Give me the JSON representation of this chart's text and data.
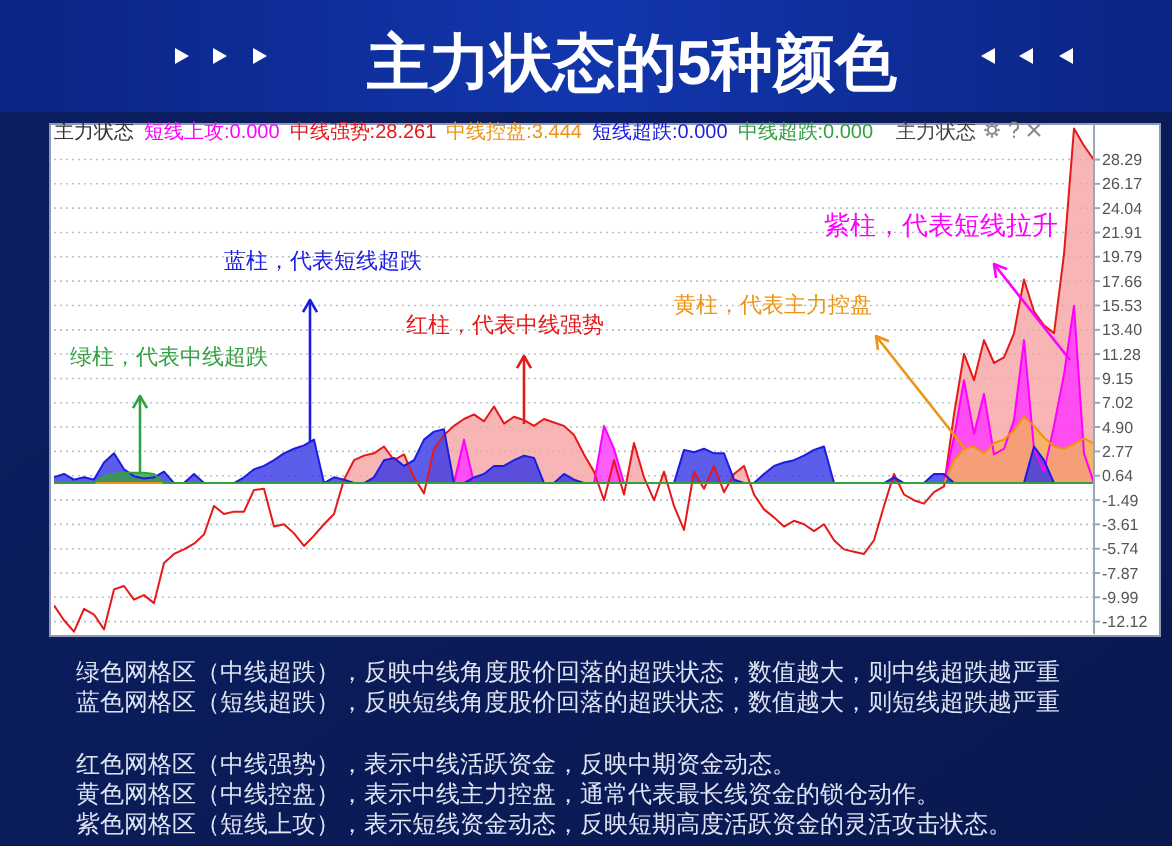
{
  "chart_data": {
    "type": "area",
    "title": "主力状态的5种颜色",
    "legend_title": "主力状态",
    "legend": "top left",
    "grid": "y",
    "ylim": [
      -13.2,
      31.4
    ],
    "yticks": [
      28.29,
      26.17,
      24.04,
      21.91,
      19.79,
      17.66,
      15.53,
      {
        "value": 13.4,
        "label": "13.40"
      },
      11.28,
      9.15,
      7.02,
      {
        "value": 4.9,
        "label": "4.90"
      },
      2.77,
      0.64,
      -1.49,
      -3.61,
      -5.74,
      -7.87,
      -9.99,
      -12.12
    ],
    "annotations": [
      "绿柱，代表中线超跌",
      "蓝柱，代表短线超跌",
      "红柱，代表中线强势",
      "黄柱，代表主力控盘",
      "紫柱，代表短线拉升",
      "主力状态",
      "绿色网格区（中线超跌），反映中线角度股价回落的超跌状态，数值越大，则中线超跌越严重",
      "蓝色网格区（短线超跌），反映短线角度股价回落的超跌状态，数值越大，则短线超跌越严重",
      "红色网格区（中线强势），表示中线活跃资金，反映中期资金动态。",
      "黄色网格区（中线控盘），表示中线主力控盘，通常代表最长线资金的锁仓动作。",
      "紫色网格区（短线上攻），表示短线资金动态，反映短期高度活跃资金的灵活攻击状态。"
    ],
    "categories": [
      null,
      null,
      null,
      null,
      null,
      null,
      null,
      null,
      null,
      null,
      null,
      null,
      null,
      null,
      null,
      null,
      null,
      null,
      null,
      null,
      null,
      null,
      null,
      null,
      null,
      null,
      null,
      null,
      null,
      null,
      null,
      null,
      null,
      null,
      null,
      null,
      null,
      null,
      null,
      null,
      null,
      null,
      null,
      null,
      null,
      null,
      null,
      null,
      null,
      null,
      null,
      null,
      null,
      null,
      null,
      null,
      null,
      null,
      null,
      null,
      null,
      null,
      null,
      null,
      null,
      null,
      null,
      null,
      null,
      null,
      null,
      null,
      null,
      null,
      null,
      null,
      null,
      null,
      null,
      null,
      null,
      null,
      null,
      null,
      null,
      null,
      null,
      null,
      null,
      null,
      null,
      null,
      null,
      null,
      null,
      null,
      null,
      null,
      null,
      null,
      null,
      null,
      null,
      null,
      null
    ],
    "series": [
      {
        "name": "短线上攻:0.000",
        "color": "#ff33ff",
        "values": [
          0,
          0,
          0,
          0,
          0,
          0,
          0,
          0,
          0,
          0,
          0,
          0,
          0,
          0,
          0,
          0,
          0,
          0,
          0,
          0,
          0,
          0,
          0,
          0,
          0,
          0,
          0,
          0,
          0,
          0,
          0,
          0,
          0,
          0,
          0,
          0,
          0,
          0,
          0,
          0,
          0,
          3.8,
          0,
          0,
          0,
          0,
          0,
          0,
          0,
          0,
          0,
          0,
          0,
          0,
          0,
          5.0,
          3.0,
          0,
          0,
          0,
          0,
          0,
          0,
          0,
          0,
          0,
          0,
          0,
          0,
          0,
          0,
          0,
          0,
          0,
          0,
          0,
          0,
          0,
          0,
          0,
          0,
          0,
          0,
          0,
          0,
          0,
          0,
          0,
          0,
          0,
          4.0,
          9.0,
          4.3,
          7.8,
          2.5,
          3.0,
          5.5,
          12.5,
          3.0,
          1.0,
          5.0,
          9.5,
          15.5,
          2.6,
          0
        ]
      },
      {
        "name": "中线强势:28.261",
        "color": "#f5a3a3",
        "values": [
          -10.7,
          -12.0,
          -13.0,
          -11.0,
          -11.5,
          -12.8,
          -9.3,
          -9.0,
          -10.2,
          -9.8,
          -10.5,
          -7.0,
          -6.2,
          -5.8,
          -5.3,
          -4.5,
          -2.0,
          -2.7,
          -2.5,
          -2.5,
          -0.6,
          -0.5,
          -3.8,
          -3.6,
          -4.4,
          -5.5,
          -4.6,
          -3.6,
          -2.7,
          0.3,
          2.0,
          2.4,
          2.6,
          3.2,
          2.0,
          2.5,
          0.5,
          -0.9,
          3.0,
          4.2,
          5.0,
          5.6,
          6.0,
          5.4,
          6.7,
          5.2,
          5.8,
          5.5,
          5.0,
          5.6,
          5.3,
          5.0,
          4.2,
          2.5,
          1.0,
          -1.5,
          2.0,
          -1.0,
          3.5,
          0.5,
          -1.5,
          1.0,
          -2.0,
          -4.1,
          1.0,
          -0.5,
          1.5,
          -0.8,
          0.8,
          1.5,
          -1.0,
          -2.3,
          -3.0,
          -3.8,
          -3.3,
          -3.6,
          -4.2,
          -3.6,
          -5.0,
          -5.8,
          -6.0,
          -6.2,
          -5.0,
          -2.0,
          0.8,
          -1.0,
          -1.5,
          -1.8,
          -0.8,
          -0.3,
          6.0,
          11.3,
          9.0,
          12.5,
          10.5,
          11.0,
          13.1,
          17.8,
          15.0,
          13.8,
          13.1,
          20.0,
          31.0,
          29.5,
          28.261
        ]
      },
      {
        "name": "中线控盘:3.444",
        "color": "#f2b45a",
        "values": [
          0,
          0,
          0,
          0,
          0,
          0,
          0,
          0,
          0,
          0,
          0,
          0,
          0,
          0,
          0,
          0,
          0,
          0,
          0,
          0,
          0,
          0,
          0,
          0,
          0,
          0,
          0,
          0,
          0,
          0,
          0,
          0,
          0,
          0,
          0,
          0,
          0,
          0,
          0,
          0,
          0,
          0,
          0,
          0,
          0,
          0,
          0,
          0,
          0,
          0,
          0,
          0,
          0,
          0,
          0,
          0,
          0,
          0,
          0,
          0,
          0,
          0,
          0,
          0,
          0,
          0,
          0,
          0,
          0,
          0,
          0,
          0,
          0,
          0,
          0,
          0,
          0,
          0,
          0,
          0,
          0,
          0,
          0,
          0,
          0,
          0,
          0,
          0,
          0,
          0,
          2.0,
          3.0,
          3.2,
          2.6,
          3.5,
          3.8,
          4.6,
          5.8,
          5.0,
          4.0,
          3.2,
          3.0,
          3.4,
          3.9,
          3.444
        ]
      },
      {
        "name": "短线超跌:0.000",
        "color": "#3535e6",
        "values": [
          0.5,
          0.8,
          0.3,
          0.5,
          0.3,
          1.8,
          2.6,
          1.2,
          0.6,
          0.4,
          0.5,
          1.0,
          0,
          0,
          0.8,
          0,
          0,
          0,
          0,
          0.5,
          1.2,
          1.5,
          2.0,
          2.6,
          3.0,
          3.3,
          3.8,
          0,
          0.5,
          0.3,
          0,
          0,
          0.5,
          2.0,
          2.2,
          1.5,
          2.0,
          3.8,
          4.5,
          4.7,
          0,
          0,
          0.5,
          0.8,
          1.5,
          1.5,
          2.0,
          2.4,
          2.2,
          0,
          0,
          0.8,
          0.3,
          0,
          0,
          0,
          0,
          0,
          0,
          0,
          0,
          0,
          0,
          2.9,
          2.7,
          3.0,
          2.6,
          2.6,
          0.3,
          0,
          0,
          0.8,
          1.5,
          1.8,
          2.0,
          2.4,
          2.9,
          3.2,
          0,
          0,
          0,
          0,
          0,
          0,
          0.5,
          0,
          0,
          0,
          0.8,
          0.8,
          0,
          0,
          0,
          0,
          0,
          0,
          0,
          0,
          3.2,
          2.0,
          0,
          0,
          0,
          0,
          0
        ]
      },
      {
        "name": "中线超跌:0.000",
        "color": "#34a040",
        "values": [
          0,
          0,
          0,
          0,
          0,
          0.6,
          0.8,
          0.9,
          0.9,
          0.9,
          0.8,
          0,
          0,
          0,
          0,
          0,
          0,
          0,
          0,
          0,
          0,
          0,
          0,
          0,
          0,
          0,
          0,
          0,
          0,
          0,
          0,
          0,
          0,
          0,
          0,
          0,
          0,
          0,
          0,
          0,
          0,
          0,
          0,
          0,
          0,
          0,
          0,
          0,
          0,
          0,
          0,
          0,
          0,
          0,
          0,
          0,
          0,
          0,
          0,
          0,
          0,
          0,
          0,
          0,
          0,
          0,
          0,
          0,
          0,
          0,
          0,
          0,
          0,
          0,
          0,
          0,
          0,
          0,
          0,
          0,
          0,
          0,
          0,
          0,
          0,
          0,
          0,
          0,
          0,
          0,
          0,
          0,
          0,
          0,
          0,
          0,
          0,
          0,
          0,
          0,
          0,
          0,
          0,
          0,
          0
        ]
      }
    ]
  }
}
